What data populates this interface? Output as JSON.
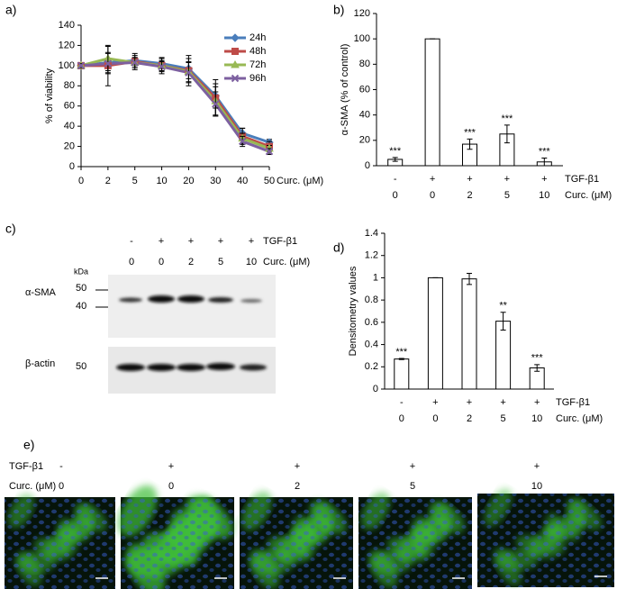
{
  "panel_labels": [
    "a)",
    "b)",
    "c)",
    "d)",
    "e)"
  ],
  "chart_data": [
    {
      "type": "line",
      "ylabel": "% of viability",
      "xlabel": "Curc. (μM)",
      "categories": [
        "0",
        "2",
        "5",
        "10",
        "20",
        "30",
        "40",
        "50"
      ],
      "ylim": [
        0,
        140
      ],
      "yticks": [
        0,
        20,
        40,
        60,
        80,
        100,
        120,
        140
      ],
      "legend": "upper right",
      "series": [
        {
          "name": "24h",
          "color": "#4a7ebb",
          "marker": "diamond",
          "values": [
            100,
            103,
            105,
            102,
            97,
            70,
            33,
            24
          ],
          "errors": [
            2,
            10,
            5,
            5,
            10,
            12,
            5,
            3
          ]
        },
        {
          "name": "48h",
          "color": "#be4b48",
          "marker": "square",
          "values": [
            100,
            100,
            104,
            100,
            95,
            68,
            30,
            20
          ],
          "errors": [
            3,
            20,
            8,
            8,
            15,
            18,
            8,
            5
          ]
        },
        {
          "name": "72h",
          "color": "#98b954",
          "marker": "triangle",
          "values": [
            100,
            107,
            103,
            100,
            94,
            65,
            28,
            18
          ],
          "errors": [
            2,
            12,
            5,
            5,
            10,
            14,
            5,
            3
          ]
        },
        {
          "name": "96h",
          "color": "#7d60a0",
          "marker": "x",
          "values": [
            100,
            102,
            103,
            99,
            93,
            62,
            25,
            15
          ],
          "errors": [
            2,
            10,
            5,
            5,
            10,
            12,
            5,
            3
          ]
        }
      ]
    },
    {
      "type": "bar",
      "ylabel": "α-SMA (% of control)",
      "row_labels": [
        "TGF-β1",
        "Curc. (μM)"
      ],
      "tgf": [
        "-",
        "+",
        "+",
        "+",
        "+"
      ],
      "categories": [
        "0",
        "0",
        "2",
        "5",
        "10"
      ],
      "values": [
        5,
        100,
        17,
        25,
        3
      ],
      "errors": [
        1.5,
        0,
        4,
        7,
        3
      ],
      "annotations": [
        "***",
        null,
        "***",
        "***",
        "***"
      ],
      "color": "#ffffff",
      "ylim": [
        0,
        120
      ],
      "yticks": [
        0,
        20,
        40,
        60,
        80,
        100,
        120
      ]
    },
    {
      "type": "bar",
      "ylabel": "Densitometry values",
      "row_labels": [
        "TGF-β1",
        "Curc. (μM)"
      ],
      "tgf": [
        "-",
        "+",
        "+",
        "+",
        "+"
      ],
      "categories": [
        "0",
        "0",
        "2",
        "5",
        "10"
      ],
      "values": [
        0.27,
        1,
        0.99,
        0.61,
        0.19
      ],
      "errors": [
        0.005,
        0,
        0.05,
        0.08,
        0.03
      ],
      "annotations": [
        "***",
        null,
        null,
        "**",
        "***"
      ],
      "color": "#ffffff",
      "ylim": [
        0,
        1.4
      ],
      "yticks": [
        0,
        0.2,
        0.4,
        0.6,
        0.8,
        1,
        1.2,
        1.4
      ]
    }
  ],
  "blot": {
    "row_labels": [
      "TGF-β1",
      "Curc. (μM)"
    ],
    "tgf": [
      "-",
      "+",
      "+",
      "+",
      "+"
    ],
    "curc": [
      "0",
      "0",
      "2",
      "5",
      "10"
    ],
    "kda": "kDa",
    "markers": [
      "50",
      "40",
      "50"
    ],
    "proteins": [
      "α-SMA",
      "β-actin"
    ]
  },
  "micrographs": {
    "row_labels": [
      "TGF-β1",
      "Curc. (μM)"
    ],
    "tgf": [
      "-",
      "+",
      "+",
      "+",
      "+"
    ],
    "curc": [
      "0",
      "0",
      "2",
      "5",
      "10"
    ]
  }
}
